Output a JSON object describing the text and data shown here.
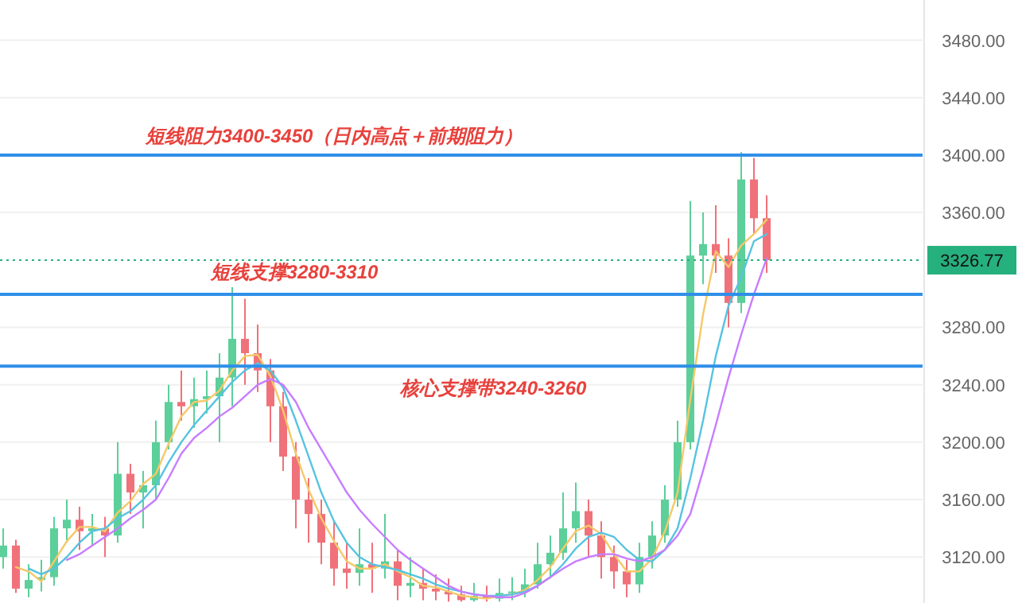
{
  "chart_data": {
    "type": "candlestick",
    "categories": [
      null,
      null,
      null,
      null,
      null,
      null,
      null,
      null,
      null,
      null,
      null,
      null,
      null,
      null,
      null,
      null,
      null,
      null,
      null,
      null,
      null,
      null,
      null,
      null,
      null,
      null,
      null,
      null,
      null,
      null,
      null,
      null,
      null,
      null,
      null,
      null,
      null,
      null,
      null,
      null,
      null,
      null,
      null,
      null,
      null,
      null,
      null,
      null,
      null,
      null,
      null,
      null,
      null,
      null,
      null,
      null,
      null,
      null,
      null,
      null,
      null
    ],
    "ohlc": [
      [
        3120,
        3140,
        3112,
        3128
      ],
      [
        3128,
        3132,
        3095,
        3098
      ],
      [
        3098,
        3115,
        3092,
        3104
      ],
      [
        3104,
        3118,
        3096,
        3106
      ],
      [
        3106,
        3148,
        3100,
        3140
      ],
      [
        3140,
        3160,
        3130,
        3146
      ],
      [
        3146,
        3155,
        3125,
        3138
      ],
      [
        3138,
        3150,
        3128,
        3140
      ],
      [
        3140,
        3148,
        3120,
        3135
      ],
      [
        3135,
        3200,
        3130,
        3178
      ],
      [
        3178,
        3185,
        3150,
        3165
      ],
      [
        3165,
        3180,
        3140,
        3170
      ],
      [
        3170,
        3215,
        3160,
        3200
      ],
      [
        3200,
        3240,
        3195,
        3228
      ],
      [
        3228,
        3250,
        3215,
        3225
      ],
      [
        3225,
        3245,
        3210,
        3230
      ],
      [
        3230,
        3250,
        3220,
        3232
      ],
      [
        3232,
        3262,
        3200,
        3245
      ],
      [
        3245,
        3308,
        3225,
        3272
      ],
      [
        3272,
        3300,
        3240,
        3262
      ],
      [
        3262,
        3282,
        3235,
        3250
      ],
      [
        3250,
        3258,
        3200,
        3225
      ],
      [
        3225,
        3235,
        3180,
        3190
      ],
      [
        3190,
        3200,
        3140,
        3160
      ],
      [
        3160,
        3175,
        3130,
        3150
      ],
      [
        3150,
        3160,
        3115,
        3130
      ],
      [
        3130,
        3145,
        3100,
        3112
      ],
      [
        3112,
        3130,
        3098,
        3109
      ],
      [
        3109,
        3140,
        3100,
        3115
      ],
      [
        3115,
        3130,
        3095,
        3112
      ],
      [
        3112,
        3150,
        3105,
        3117
      ],
      [
        3117,
        3125,
        3090,
        3100
      ],
      [
        3100,
        3120,
        3092,
        3102
      ],
      [
        3102,
        3112,
        3090,
        3098
      ],
      [
        3098,
        3108,
        3090,
        3096
      ],
      [
        3096,
        3105,
        3089,
        3094
      ],
      [
        3094,
        3100,
        3089,
        3090
      ],
      [
        3090,
        3102,
        3089,
        3093
      ],
      [
        3093,
        3100,
        3089,
        3091
      ],
      [
        3091,
        3105,
        3089,
        3095
      ],
      [
        3095,
        3106,
        3090,
        3096
      ],
      [
        3096,
        3112,
        3092,
        3101
      ],
      [
        3101,
        3130,
        3098,
        3115
      ],
      [
        3115,
        3135,
        3105,
        3123
      ],
      [
        3123,
        3165,
        3118,
        3140
      ],
      [
        3140,
        3172,
        3130,
        3152
      ],
      [
        3152,
        3160,
        3120,
        3135
      ],
      [
        3135,
        3145,
        3105,
        3120
      ],
      [
        3120,
        3128,
        3098,
        3110
      ],
      [
        3110,
        3118,
        3092,
        3101
      ],
      [
        3101,
        3130,
        3095,
        3120
      ],
      [
        3120,
        3145,
        3112,
        3135
      ],
      [
        3135,
        3170,
        3130,
        3160
      ],
      [
        3160,
        3215,
        3155,
        3200
      ],
      [
        3200,
        3368,
        3195,
        3330
      ],
      [
        3330,
        3360,
        3310,
        3338
      ],
      [
        3338,
        3365,
        3318,
        3330
      ],
      [
        3330,
        3342,
        3280,
        3297
      ],
      [
        3297,
        3402,
        3290,
        3383
      ],
      [
        3383,
        3398,
        3345,
        3356
      ],
      [
        3356,
        3372,
        3318,
        3326.77
      ]
    ],
    "series": [
      {
        "type": "line",
        "color": "#f5c86a",
        "values": [
          null,
          3113,
          3110,
          3103,
          3117,
          3131,
          3141,
          3141,
          3138,
          3151,
          3159,
          3171,
          3178,
          3199,
          3218,
          3228,
          3229,
          3236,
          3250,
          3260,
          3261,
          3246,
          3222,
          3192,
          3167,
          3147,
          3131,
          3117,
          3112,
          3112,
          3115,
          3110,
          3106,
          3100,
          3099,
          3096,
          3093,
          3092,
          3091,
          3093,
          3094,
          3097,
          3104,
          3113,
          3126,
          3138,
          3142,
          3136,
          3122,
          3110,
          3110,
          3119,
          3138,
          3165,
          3230,
          3289,
          3333,
          3322,
          3337,
          3345,
          3355
        ]
      },
      {
        "type": "line",
        "color": "#56c3e0",
        "values": [
          null,
          null,
          3112,
          3108,
          3112,
          3120,
          3130,
          3138,
          3140,
          3147,
          3152,
          3160,
          3170,
          3186,
          3200,
          3212,
          3222,
          3232,
          3242,
          3250,
          3255,
          3250,
          3238,
          3215,
          3190,
          3165,
          3145,
          3130,
          3120,
          3115,
          3113,
          3111,
          3108,
          3105,
          3101,
          3098,
          3096,
          3094,
          3093,
          3093,
          3094,
          3096,
          3100,
          3106,
          3115,
          3126,
          3134,
          3137,
          3134,
          3125,
          3118,
          3117,
          3125,
          3140,
          3175,
          3215,
          3260,
          3295,
          3315,
          3340,
          3345
        ]
      },
      {
        "type": "line",
        "color": "#c77dff",
        "values": [
          null,
          null,
          null,
          null,
          null,
          3118,
          3122,
          3128,
          3134,
          3140,
          3147,
          3153,
          3160,
          3175,
          3192,
          3203,
          3210,
          3218,
          3224,
          3232,
          3240,
          3244,
          3240,
          3228,
          3210,
          3195,
          3180,
          3165,
          3153,
          3143,
          3134,
          3125,
          3118,
          3112,
          3106,
          3100,
          3096,
          3094,
          3093,
          3092,
          3092,
          3095,
          3100,
          3106,
          3112,
          3117,
          3120,
          3122,
          3122,
          3119,
          3117,
          3120,
          3125,
          3135,
          3150,
          3180,
          3212,
          3245,
          3275,
          3303,
          3328
        ]
      }
    ],
    "ylim": [
      3088,
      3508
    ],
    "yticks": [
      {
        "value": 3120,
        "label": "3120.00"
      },
      {
        "value": 3160,
        "label": "3160.00"
      },
      {
        "value": 3200,
        "label": "3200.00"
      },
      {
        "value": 3240,
        "label": "3240.00"
      },
      {
        "value": 3280,
        "label": "3280.00"
      },
      {
        "value": 3360,
        "label": "3360.00"
      },
      {
        "value": 3400,
        "label": "3400.00"
      },
      {
        "value": 3440,
        "label": "3440.00"
      },
      {
        "value": 3480,
        "label": "3480.00"
      }
    ],
    "tick_labels": "y",
    "grid": "y",
    "marker": "none",
    "line_style": "solid",
    "ref_lines": [
      {
        "axis": "y",
        "value": 3400,
        "label": "短线阻力3400-3450（日内高点＋前期阻力）",
        "color": "#2f8fe8",
        "line_style": "solid"
      },
      {
        "axis": "y",
        "value": 3303,
        "label": "短线支撑3280-3310",
        "color": "#2f8fe8",
        "line_style": "solid"
      },
      {
        "axis": "y",
        "value": 3253,
        "label": "核心支撑带3240-3260",
        "color": "#2f8fe8",
        "line_style": "solid"
      },
      {
        "axis": "y",
        "value": 3326.77,
        "label": "3326.77",
        "color": "#26b07e",
        "line_style": "dotted"
      }
    ]
  }
}
